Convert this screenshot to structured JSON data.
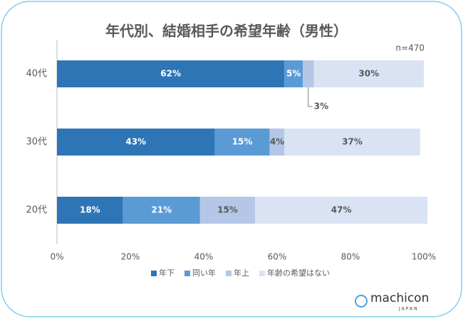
{
  "chart_data": {
    "type": "stacked_barh",
    "title": "年代別、結婚相手の希望年齢（男性）",
    "annotations": [
      "n=470"
    ],
    "logo_text": "machicon",
    "logo_sub": "JAPAN",
    "categories": [
      "40代",
      "30代",
      "20代"
    ],
    "series": [
      {
        "name": "年下",
        "color": "#2e75b6",
        "values": [
          62,
          43,
          18
        ],
        "value_labels": [
          "62%",
          "43%",
          "18%"
        ]
      },
      {
        "name": "同い年",
        "color": "#5b9bd5",
        "values": [
          5,
          15,
          21
        ],
        "value_labels": [
          "5%",
          "15%",
          "21%"
        ]
      },
      {
        "name": "年上",
        "color": "#b4c7e7",
        "values": [
          3,
          4,
          15
        ],
        "value_labels": [
          "3%",
          "4%",
          "15%"
        ]
      },
      {
        "name": "年齢の希望はない",
        "color": "#dae3f3",
        "values": [
          30,
          37,
          47
        ],
        "value_labels": [
          "30%",
          "37%",
          "47%"
        ]
      }
    ],
    "xlim": [
      0,
      100
    ],
    "xticks": [
      {
        "value": 0,
        "label": "0%"
      },
      {
        "value": 20,
        "label": "20%"
      },
      {
        "value": 40,
        "label": "40%"
      },
      {
        "value": 60,
        "label": "60%"
      },
      {
        "value": 80,
        "label": "80%"
      },
      {
        "value": 100,
        "label": "100%"
      }
    ],
    "grid": false,
    "legend": "bottom"
  }
}
